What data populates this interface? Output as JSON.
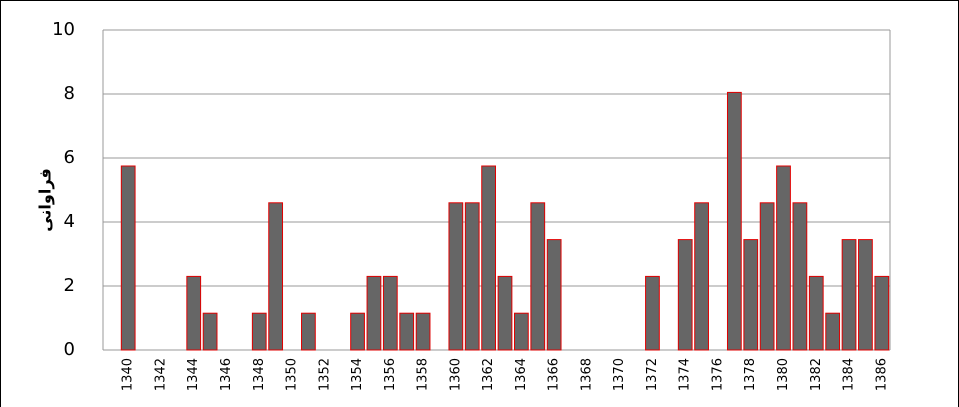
{
  "chart_data": {
    "type": "bar",
    "y_label": "فراوانی",
    "categories": [
      "1340",
      null,
      "1342",
      null,
      "1344",
      null,
      "1346",
      null,
      "1348",
      null,
      "1350",
      null,
      "1352",
      null,
      "1354",
      null,
      "1356",
      null,
      "1358",
      null,
      "1360",
      null,
      "1362",
      null,
      "1364",
      null,
      "1366",
      null,
      "1368",
      null,
      "1370",
      null,
      "1372",
      null,
      "1374",
      null,
      "1376",
      null,
      "1378",
      null,
      "1380",
      null,
      "1382",
      null,
      "1384",
      null,
      "1386"
    ],
    "values": [
      5.75,
      0,
      0,
      0,
      2.3,
      1.15,
      0,
      0,
      1.15,
      4.6,
      0,
      1.15,
      0,
      0,
      1.15,
      2.3,
      2.3,
      1.15,
      1.15,
      0,
      4.6,
      4.6,
      5.75,
      2.3,
      1.15,
      4.6,
      3.45,
      0,
      0,
      0,
      0,
      0,
      2.3,
      0,
      3.45,
      4.6,
      0,
      8.05,
      3.45,
      4.6,
      5.75,
      4.6,
      2.3,
      1.15,
      3.45,
      3.45,
      2.3
    ],
    "color": "#666666",
    "edge_color": "#e00000",
    "ylim": [
      0,
      10
    ],
    "yticks": [
      0,
      2,
      4,
      6,
      8,
      10
    ],
    "grid": true
  }
}
